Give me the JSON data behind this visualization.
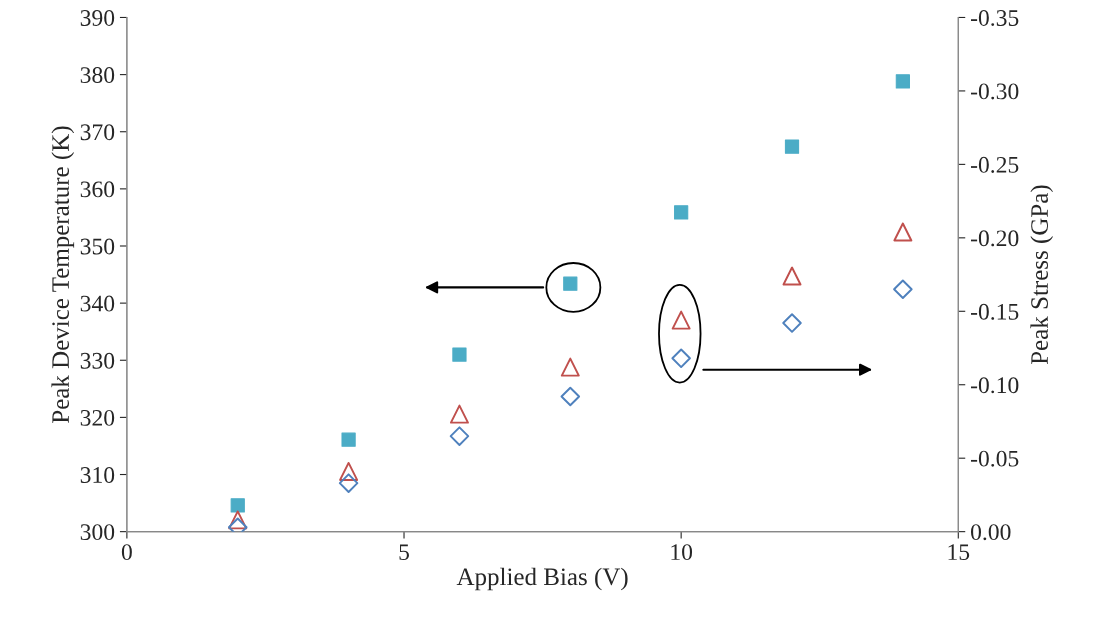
{
  "chart_data": {
    "type": "scatter",
    "xlabel": "Applied Bias (V)",
    "ylabel": "Peak Device Temperature (K)",
    "y2label": "Peak Stress (GPa)",
    "x": [
      2,
      4,
      6,
      8,
      10,
      12,
      14
    ],
    "series": [
      {
        "color": "#4bacc6",
        "marker": "square",
        "values": [
          304.6,
          316.1,
          331.0,
          343.4,
          355.9,
          367.4,
          378.8
        ]
      },
      {
        "color": "#c0504d",
        "marker": "triangle",
        "axis": "y2",
        "values": [
          -0.008,
          -0.041,
          -0.08,
          -0.112,
          -0.144,
          -0.174,
          -0.204
        ]
      },
      {
        "color": "#4f81bd",
        "marker": "diamond",
        "axis": "y2",
        "values": [
          -0.003,
          -0.033,
          -0.065,
          -0.092,
          -0.118,
          -0.142,
          -0.165
        ]
      }
    ],
    "xlim": [
      0,
      15
    ],
    "xticks": [
      0,
      5,
      10,
      15
    ],
    "ylim": [
      300,
      390
    ],
    "yticks": [
      300,
      310,
      320,
      330,
      340,
      350,
      360,
      370,
      380,
      390
    ],
    "y2lim": [
      0,
      -0.35
    ],
    "y2ticks": [
      {
        "value": 0,
        "label": "0.00"
      },
      {
        "value": -0.05,
        "label": "-0.05"
      },
      {
        "value": -0.1,
        "label": "-0.10"
      },
      {
        "value": -0.15,
        "label": "-0.15"
      },
      {
        "value": -0.2,
        "label": "-0.20"
      },
      {
        "value": -0.25,
        "label": "-0.25"
      },
      {
        "value": -0.3,
        "label": "-0.30"
      },
      {
        "value": -0.35,
        "label": "-0.35"
      }
    ],
    "grid": false,
    "legend": false
  }
}
